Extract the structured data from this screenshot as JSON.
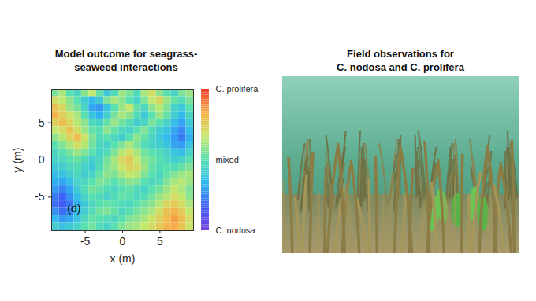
{
  "chart_data": {
    "type": "heatmap",
    "title": "Model outcome for seagrass-\nseaweed interactions",
    "x_label": "x (m)",
    "y_label": "y (m)",
    "xlim": [
      -9.5,
      9.5
    ],
    "ylim": [
      -9.5,
      9.5
    ],
    "xticks": [
      -5,
      0,
      5
    ],
    "yticks": [
      -5,
      0,
      5
    ],
    "x": [
      -9,
      -8,
      -7,
      -6,
      -5,
      -4,
      -3,
      -2,
      -1,
      0,
      1,
      2,
      3,
      4,
      5,
      6,
      7,
      8,
      9
    ],
    "y": [
      9,
      8,
      7,
      6,
      5,
      4,
      3,
      2,
      1,
      0,
      -1,
      -2,
      -3,
      -4,
      -5,
      -6,
      -7,
      -8,
      -9
    ],
    "z": [
      [
        0.55,
        0.62,
        0.5,
        0.45,
        0.58,
        0.66,
        0.52,
        0.4,
        0.48,
        0.6,
        0.55,
        0.47,
        0.62,
        0.7,
        0.58,
        0.5,
        0.45,
        0.55,
        0.6
      ],
      [
        0.7,
        0.65,
        0.58,
        0.5,
        0.42,
        0.35,
        0.4,
        0.55,
        0.62,
        0.58,
        0.5,
        0.44,
        0.56,
        0.66,
        0.72,
        0.6,
        0.52,
        0.48,
        0.55
      ],
      [
        0.78,
        0.72,
        0.6,
        0.55,
        0.45,
        0.3,
        0.28,
        0.38,
        0.5,
        0.6,
        0.66,
        0.52,
        0.46,
        0.58,
        0.64,
        0.56,
        0.44,
        0.4,
        0.5
      ],
      [
        0.82,
        0.75,
        0.68,
        0.62,
        0.5,
        0.38,
        0.32,
        0.42,
        0.55,
        0.62,
        0.58,
        0.48,
        0.4,
        0.5,
        0.6,
        0.52,
        0.42,
        0.35,
        0.45
      ],
      [
        0.74,
        0.8,
        0.72,
        0.64,
        0.58,
        0.46,
        0.44,
        0.52,
        0.6,
        0.54,
        0.48,
        0.42,
        0.45,
        0.55,
        0.5,
        0.44,
        0.36,
        0.3,
        0.4
      ],
      [
        0.66,
        0.7,
        0.78,
        0.7,
        0.6,
        0.52,
        0.5,
        0.58,
        0.52,
        0.46,
        0.44,
        0.5,
        0.56,
        0.48,
        0.42,
        0.38,
        0.3,
        0.25,
        0.35
      ],
      [
        0.58,
        0.64,
        0.72,
        0.8,
        0.68,
        0.56,
        0.48,
        0.5,
        0.46,
        0.42,
        0.5,
        0.58,
        0.52,
        0.45,
        0.4,
        0.34,
        0.28,
        0.22,
        0.32
      ],
      [
        0.5,
        0.56,
        0.62,
        0.7,
        0.64,
        0.54,
        0.46,
        0.44,
        0.5,
        0.56,
        0.62,
        0.55,
        0.48,
        0.44,
        0.42,
        0.38,
        0.3,
        0.28,
        0.38
      ],
      [
        0.46,
        0.5,
        0.55,
        0.6,
        0.56,
        0.5,
        0.44,
        0.48,
        0.56,
        0.64,
        0.7,
        0.62,
        0.54,
        0.5,
        0.48,
        0.44,
        0.38,
        0.36,
        0.44
      ],
      [
        0.44,
        0.46,
        0.5,
        0.52,
        0.48,
        0.42,
        0.46,
        0.54,
        0.62,
        0.72,
        0.76,
        0.66,
        0.58,
        0.54,
        0.5,
        0.46,
        0.42,
        0.44,
        0.5
      ],
      [
        0.4,
        0.42,
        0.46,
        0.48,
        0.44,
        0.4,
        0.48,
        0.56,
        0.6,
        0.68,
        0.74,
        0.7,
        0.6,
        0.52,
        0.48,
        0.5,
        0.48,
        0.52,
        0.56
      ],
      [
        0.36,
        0.38,
        0.42,
        0.46,
        0.42,
        0.44,
        0.52,
        0.58,
        0.56,
        0.62,
        0.66,
        0.64,
        0.56,
        0.5,
        0.46,
        0.52,
        0.56,
        0.6,
        0.62
      ],
      [
        0.32,
        0.3,
        0.36,
        0.44,
        0.46,
        0.5,
        0.56,
        0.54,
        0.5,
        0.54,
        0.58,
        0.56,
        0.5,
        0.46,
        0.48,
        0.56,
        0.62,
        0.64,
        0.6
      ],
      [
        0.28,
        0.24,
        0.3,
        0.4,
        0.48,
        0.54,
        0.52,
        0.48,
        0.46,
        0.5,
        0.52,
        0.48,
        0.44,
        0.5,
        0.54,
        0.6,
        0.66,
        0.62,
        0.56
      ],
      [
        0.22,
        0.18,
        0.26,
        0.36,
        0.44,
        0.5,
        0.48,
        0.44,
        0.48,
        0.52,
        0.5,
        0.46,
        0.48,
        0.54,
        0.6,
        0.64,
        0.7,
        0.66,
        0.58
      ],
      [
        0.2,
        0.16,
        0.22,
        0.32,
        0.4,
        0.46,
        0.5,
        0.52,
        0.5,
        0.48,
        0.46,
        0.5,
        0.54,
        0.58,
        0.64,
        0.72,
        0.76,
        0.7,
        0.62
      ],
      [
        0.26,
        0.2,
        0.24,
        0.34,
        0.42,
        0.48,
        0.54,
        0.56,
        0.52,
        0.46,
        0.5,
        0.54,
        0.58,
        0.62,
        0.7,
        0.78,
        0.82,
        0.76,
        0.66
      ],
      [
        0.34,
        0.28,
        0.3,
        0.38,
        0.46,
        0.52,
        0.5,
        0.48,
        0.46,
        0.5,
        0.56,
        0.58,
        0.62,
        0.68,
        0.74,
        0.8,
        0.86,
        0.8,
        0.7
      ],
      [
        0.42,
        0.38,
        0.4,
        0.44,
        0.5,
        0.54,
        0.48,
        0.44,
        0.5,
        0.56,
        0.6,
        0.62,
        0.66,
        0.7,
        0.76,
        0.82,
        0.84,
        0.78,
        0.68
      ]
    ],
    "colorbar": {
      "range": [
        0,
        1
      ],
      "ticks": [
        {
          "value": 1,
          "label": "C. prolifera"
        },
        {
          "value": 0.5,
          "label": "mixed"
        },
        {
          "value": 0,
          "label": "C. nodosa"
        }
      ]
    },
    "annotations": [
      {
        "text": "(d)",
        "x": -6.5,
        "y": -6.5
      }
    ]
  },
  "photo_panel": {
    "title": "Field observations for\nC. nodosa and C. prolifera"
  }
}
